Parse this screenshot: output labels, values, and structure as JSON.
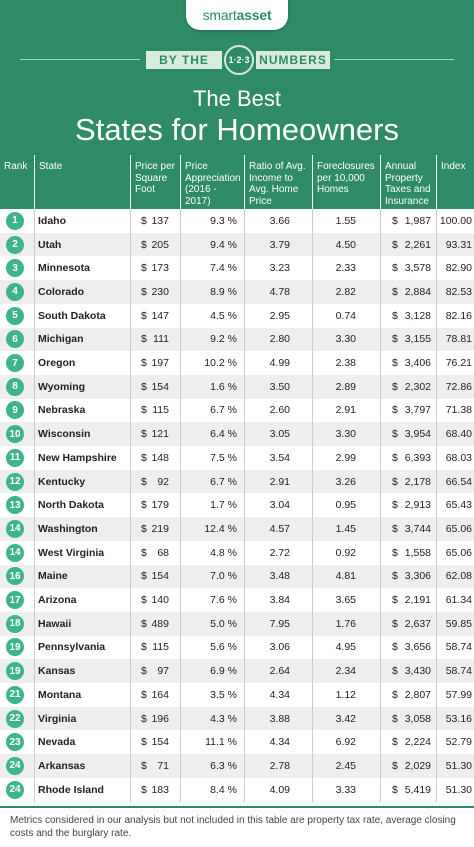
{
  "brand": {
    "logo_pre": "smart",
    "logo_post": "asset"
  },
  "banner": {
    "left": "BY THE",
    "badge": "1·2·3",
    "right": "NUMBERS"
  },
  "chart_data": {
    "type": "table",
    "title_line1": "The Best",
    "title_line2": "States for Homeowners",
    "columns": [
      "Rank",
      "State",
      "Price per Square Foot",
      "Price Appreciation (2016 - 2017)",
      "Ratio of Avg. Income to Avg. Home Price",
      "Foreclosures per 10,000 Homes",
      "Annual Property Taxes and Insurance",
      "Index"
    ],
    "rows": [
      {
        "rank": "1",
        "state": "Idaho",
        "price": "137",
        "appreciation": "9.3 %",
        "ratio": "3.66",
        "foreclosures": "1.55",
        "taxes": "1,987",
        "index": "100.00"
      },
      {
        "rank": "2",
        "state": "Utah",
        "price": "205",
        "appreciation": "9.4 %",
        "ratio": "3.79",
        "foreclosures": "4.50",
        "taxes": "2,261",
        "index": "93.31"
      },
      {
        "rank": "3",
        "state": "Minnesota",
        "price": "173",
        "appreciation": "7.4 %",
        "ratio": "3.23",
        "foreclosures": "2.33",
        "taxes": "3,578",
        "index": "82.90"
      },
      {
        "rank": "4",
        "state": "Colorado",
        "price": "230",
        "appreciation": "8.9 %",
        "ratio": "4.78",
        "foreclosures": "2.82",
        "taxes": "2,884",
        "index": "82.53"
      },
      {
        "rank": "5",
        "state": "South Dakota",
        "price": "147",
        "appreciation": "4.5 %",
        "ratio": "2.95",
        "foreclosures": "0.74",
        "taxes": "3,128",
        "index": "82.16"
      },
      {
        "rank": "6",
        "state": "Michigan",
        "price": "111",
        "appreciation": "9.2 %",
        "ratio": "2.80",
        "foreclosures": "3.30",
        "taxes": "3,155",
        "index": "78.81"
      },
      {
        "rank": "7",
        "state": "Oregon",
        "price": "197",
        "appreciation": "10.2 %",
        "ratio": "4.99",
        "foreclosures": "2.38",
        "taxes": "3,406",
        "index": "76.21"
      },
      {
        "rank": "8",
        "state": "Wyoming",
        "price": "154",
        "appreciation": "1.6 %",
        "ratio": "3.50",
        "foreclosures": "2.89",
        "taxes": "2,302",
        "index": "72.86"
      },
      {
        "rank": "9",
        "state": "Nebraska",
        "price": "115",
        "appreciation": "6.7 %",
        "ratio": "2.60",
        "foreclosures": "2.91",
        "taxes": "3,797",
        "index": "71.38"
      },
      {
        "rank": "10",
        "state": "Wisconsin",
        "price": "121",
        "appreciation": "6.4 %",
        "ratio": "3.05",
        "foreclosures": "3.30",
        "taxes": "3,954",
        "index": "68.40"
      },
      {
        "rank": "11",
        "state": "New Hampshire",
        "price": "148",
        "appreciation": "7.5 %",
        "ratio": "3.54",
        "foreclosures": "2.99",
        "taxes": "6,393",
        "index": "68.03"
      },
      {
        "rank": "12",
        "state": "Kentucky",
        "price": "92",
        "appreciation": "6.7 %",
        "ratio": "2.91",
        "foreclosures": "3.26",
        "taxes": "2,178",
        "index": "66.54"
      },
      {
        "rank": "13",
        "state": "North Dakota",
        "price": "179",
        "appreciation": "1.7 %",
        "ratio": "3.04",
        "foreclosures": "0.95",
        "taxes": "2,913",
        "index": "65.43"
      },
      {
        "rank": "14",
        "state": "Washington",
        "price": "219",
        "appreciation": "12.4 %",
        "ratio": "4.57",
        "foreclosures": "1.45",
        "taxes": "3,744",
        "index": "65.06"
      },
      {
        "rank": "14",
        "state": "West Virginia",
        "price": "68",
        "appreciation": "4.8 %",
        "ratio": "2.72",
        "foreclosures": "0.92",
        "taxes": "1,558",
        "index": "65.06"
      },
      {
        "rank": "16",
        "state": "Maine",
        "price": "154",
        "appreciation": "7.0 %",
        "ratio": "3.48",
        "foreclosures": "4.81",
        "taxes": "3,306",
        "index": "62.08"
      },
      {
        "rank": "17",
        "state": "Arizona",
        "price": "140",
        "appreciation": "7.6 %",
        "ratio": "3.84",
        "foreclosures": "3.65",
        "taxes": "2,191",
        "index": "61.34"
      },
      {
        "rank": "18",
        "state": "Hawaii",
        "price": "489",
        "appreciation": "5.0 %",
        "ratio": "7.95",
        "foreclosures": "1.76",
        "taxes": "2,637",
        "index": "59.85"
      },
      {
        "rank": "19",
        "state": "Pennsylvania",
        "price": "115",
        "appreciation": "5.6 %",
        "ratio": "3.06",
        "foreclosures": "4.95",
        "taxes": "3,656",
        "index": "58.74"
      },
      {
        "rank": "19",
        "state": "Kansas",
        "price": "97",
        "appreciation": "6.9 %",
        "ratio": "2.64",
        "foreclosures": "2.34",
        "taxes": "3,430",
        "index": "58.74"
      },
      {
        "rank": "21",
        "state": "Montana",
        "price": "164",
        "appreciation": "3.5 %",
        "ratio": "4.34",
        "foreclosures": "1.12",
        "taxes": "2,807",
        "index": "57.99"
      },
      {
        "rank": "22",
        "state": "Virginia",
        "price": "196",
        "appreciation": "4.3 %",
        "ratio": "3.88",
        "foreclosures": "3.42",
        "taxes": "3,058",
        "index": "53.16"
      },
      {
        "rank": "23",
        "state": "Nevada",
        "price": "154",
        "appreciation": "11.1 %",
        "ratio": "4.34",
        "foreclosures": "6.92",
        "taxes": "2,224",
        "index": "52.79"
      },
      {
        "rank": "24",
        "state": "Arkansas",
        "price": "71",
        "appreciation": "6.3 %",
        "ratio": "2.78",
        "foreclosures": "2.45",
        "taxes": "2,029",
        "index": "51.30"
      },
      {
        "rank": "24",
        "state": "Rhode Island",
        "price": "183",
        "appreciation": "8.4 %",
        "ratio": "4.09",
        "foreclosures": "3.33",
        "taxes": "5,419",
        "index": "51.30"
      }
    ],
    "currency_symbol": "$",
    "footnote": "Metrics considered in our analysis but not included in this table are property tax rate, average closing costs and the burglary rate."
  },
  "colors": {
    "brand_green": "#2e8b66",
    "rank_circle": "#3eb489",
    "row_stripe": "#eeeeee"
  }
}
